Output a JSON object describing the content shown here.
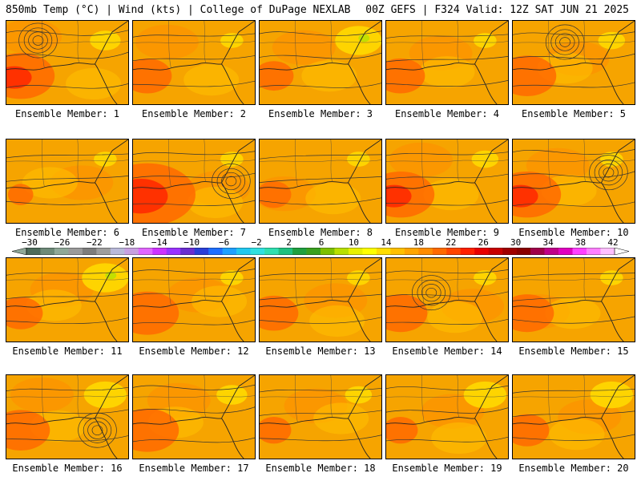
{
  "header": {
    "left": "850mb Temp (°C) | Wind (kts) | College of DuPage NEXLAB",
    "right": "00Z GEFS | F324 Valid: 12Z SAT JUN 21 2025"
  },
  "members": [
    {
      "label": "Ensemble Member: 1",
      "warm": 0.55,
      "cool": 0.15,
      "highs": 1
    },
    {
      "label": "Ensemble Member: 2",
      "warm": 0.35,
      "cool": 0.05,
      "highs": 0
    },
    {
      "label": "Ensemble Member: 3",
      "warm": 0.25,
      "cool": 0.35,
      "highs": 0
    },
    {
      "label": "Ensemble Member: 4",
      "warm": 0.35,
      "cool": 0.05,
      "highs": 0
    },
    {
      "label": "Ensemble Member: 5",
      "warm": 0.45,
      "cool": 0.1,
      "highs": 1
    },
    {
      "label": "Ensemble Member: 6",
      "warm": 0.1,
      "cool": 0.05,
      "highs": 0
    },
    {
      "label": "Ensemble Member: 7",
      "warm": 0.85,
      "cool": 0.05,
      "highs": 1
    },
    {
      "label": "Ensemble Member: 8",
      "warm": 0.2,
      "cool": 0.05,
      "highs": 0
    },
    {
      "label": "Ensemble Member: 9",
      "warm": 0.55,
      "cool": 0.1,
      "highs": 0
    },
    {
      "label": "Ensemble Member: 10",
      "warm": 0.55,
      "cool": 0.05,
      "highs": 1
    },
    {
      "label": "Ensemble Member: 11",
      "warm": 0.3,
      "cool": 0.35,
      "highs": 0
    },
    {
      "label": "Ensemble Member: 12",
      "warm": 0.5,
      "cool": 0.05,
      "highs": 0
    },
    {
      "label": "Ensemble Member: 13",
      "warm": 0.35,
      "cool": 0.05,
      "highs": 0
    },
    {
      "label": "Ensemble Member: 14",
      "warm": 0.4,
      "cool": 0.05,
      "highs": 1
    },
    {
      "label": "Ensemble Member: 15",
      "warm": 0.4,
      "cool": 0.05,
      "highs": 0
    },
    {
      "label": "Ensemble Member: 16",
      "warm": 0.45,
      "cool": 0.3,
      "highs": 1
    },
    {
      "label": "Ensemble Member: 17",
      "warm": 0.5,
      "cool": 0.15,
      "highs": 0
    },
    {
      "label": "Ensemble Member: 18",
      "warm": 0.2,
      "cool": 0.1,
      "highs": 0
    },
    {
      "label": "Ensemble Member: 19",
      "warm": 0.2,
      "cool": 0.3,
      "highs": 0
    },
    {
      "label": "Ensemble Member: 20",
      "warm": 0.3,
      "cool": 0.3,
      "highs": 0
    }
  ],
  "colorbar": {
    "ticks": [
      "−30",
      "−26",
      "−22",
      "−18",
      "−14",
      "−10",
      "−6",
      "−2",
      "2",
      "6",
      "10",
      "14",
      "18",
      "22",
      "26",
      "30",
      "34",
      "38",
      "42"
    ],
    "colors": [
      "#4d6b5a",
      "#6d8a78",
      "#8fa898",
      "#9a9a9a",
      "#7d7d7d",
      "#9e9e9e",
      "#b9b9d9",
      "#c7a0e0",
      "#e066ff",
      "#cc33ff",
      "#9933ff",
      "#6a2fd0",
      "#2a3fd8",
      "#1e6fff",
      "#1ea0ff",
      "#21c8f0",
      "#30e0e0",
      "#2fdfb0",
      "#20c080",
      "#1fa040",
      "#3aa020",
      "#7dc000",
      "#b8e000",
      "#e8f000",
      "#ffff00",
      "#ffdd00",
      "#ffc000",
      "#ffa500",
      "#ff8c00",
      "#ff6a00",
      "#ff4500",
      "#ff2000",
      "#e80000",
      "#c80000",
      "#a00000",
      "#8a0000",
      "#a0004a",
      "#c0008a",
      "#e000c0",
      "#ff40ff",
      "#ff80ff",
      "#ffc0ff"
    ]
  }
}
